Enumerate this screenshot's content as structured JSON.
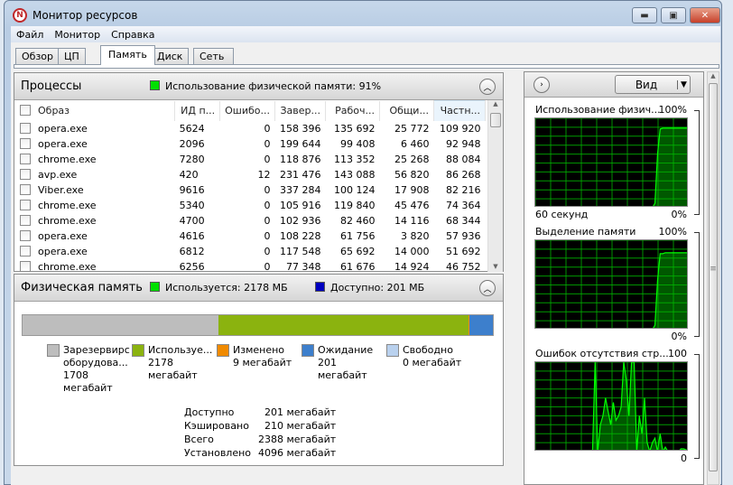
{
  "window": {
    "title": "Монитор ресурсов",
    "icon": "resource-monitor-icon"
  },
  "menu": [
    "Файл",
    "Монитор",
    "Справка"
  ],
  "tabs": [
    {
      "label": "Обзор"
    },
    {
      "label": "ЦП"
    },
    {
      "label": "Память",
      "active": true
    },
    {
      "label": "Диск"
    },
    {
      "label": "Сеть"
    }
  ],
  "processes": {
    "title": "Процессы",
    "usage_label": "Использование физической памяти: 91%",
    "usage_color": "#00e000",
    "columns": [
      "Образ",
      "ИД п...",
      "Ошибо...",
      "Завер...",
      "Рабоч...",
      "Общи...",
      "Частн..."
    ],
    "sorted_column": "Частн...",
    "rows": [
      [
        "opera.exe",
        "5624",
        "0",
        "158 396",
        "135 692",
        "25 772",
        "109 920"
      ],
      [
        "opera.exe",
        "2096",
        "0",
        "199 644",
        "99 408",
        "6 460",
        "92 948"
      ],
      [
        "chrome.exe",
        "7280",
        "0",
        "118 876",
        "113 352",
        "25 268",
        "88 084"
      ],
      [
        "avp.exe",
        "420",
        "12",
        "231 476",
        "143 088",
        "56 820",
        "86 268"
      ],
      [
        "Viber.exe",
        "9616",
        "0",
        "337 284",
        "100 124",
        "17 908",
        "82 216"
      ],
      [
        "chrome.exe",
        "5340",
        "0",
        "105 916",
        "119 840",
        "45 476",
        "74 364"
      ],
      [
        "chrome.exe",
        "4700",
        "0",
        "102 936",
        "82 460",
        "14 116",
        "68 344"
      ],
      [
        "opera.exe",
        "4616",
        "0",
        "108 228",
        "61 756",
        "3 820",
        "57 936"
      ],
      [
        "opera.exe",
        "6812",
        "0",
        "117 548",
        "65 692",
        "14 000",
        "51 692"
      ],
      [
        "chrome.exe",
        "6256",
        "0",
        "77 348",
        "61 676",
        "14 924",
        "46 752"
      ]
    ]
  },
  "physical": {
    "title": "Физическая память",
    "used_label": "Используется: 2178 МБ",
    "available_label": "Доступно: 201 МБ",
    "used_color": "#00e000",
    "available_color": "#0000c0",
    "bar": [
      {
        "mb": 1708,
        "color": "#bdbdbd"
      },
      {
        "mb": 2178,
        "color": "#8bb30f"
      },
      {
        "mb": 9,
        "color": "#f08a00"
      },
      {
        "mb": 201,
        "color": "#3d7fcc"
      },
      {
        "mb": 0,
        "color": "#b9d1ee"
      }
    ],
    "legend": [
      {
        "name": "Зарезервирс оборудова...",
        "value": "1708 мегабайт",
        "color": "#bdbdbd"
      },
      {
        "name": "Используе...",
        "value": "2178 мегабайт",
        "color": "#8bb30f"
      },
      {
        "name": "Изменено",
        "value": "9 мегабайт",
        "color": "#f08a00"
      },
      {
        "name": "Ожидание",
        "value": "201 мегабайт",
        "color": "#3d7fcc"
      },
      {
        "name": "Свободно",
        "value": "0 мегабайт",
        "color": "#b9d1ee"
      }
    ],
    "stats": [
      {
        "label": "Доступно",
        "value": "201 мегабайт"
      },
      {
        "label": "Кэшировано",
        "value": "210 мегабайт"
      },
      {
        "label": "Всего",
        "value": "2388 мегабайт"
      },
      {
        "label": "Установлено",
        "value": "4096 мегабайт"
      }
    ]
  },
  "side": {
    "view_label": "Вид",
    "graphs": [
      {
        "title": "Использование физич...",
        "max": "100%",
        "min": "0%",
        "footer": "60 секунд",
        "values": [
          0,
          0,
          0,
          0,
          0,
          0,
          0,
          0,
          0,
          0,
          0,
          0,
          0,
          0,
          0,
          0,
          0,
          0,
          0,
          0,
          0,
          0,
          0,
          0,
          0,
          0,
          0,
          0,
          0,
          0,
          0,
          0,
          0,
          0,
          0,
          0,
          0,
          0,
          0,
          0,
          0,
          0,
          0,
          0,
          0,
          0,
          5,
          60,
          88,
          89,
          89,
          89,
          89,
          89,
          89,
          89,
          89,
          89,
          89,
          89
        ]
      },
      {
        "title": "Выделение памяти",
        "max": "100%",
        "min": "0%",
        "values": [
          0,
          0,
          0,
          0,
          0,
          0,
          0,
          0,
          0,
          0,
          0,
          0,
          0,
          0,
          0,
          0,
          0,
          0,
          0,
          0,
          0,
          0,
          0,
          0,
          0,
          0,
          0,
          0,
          0,
          0,
          0,
          0,
          0,
          0,
          0,
          0,
          0,
          0,
          0,
          0,
          0,
          0,
          0,
          0,
          0,
          0,
          5,
          55,
          85,
          85,
          86,
          86,
          86,
          86,
          86,
          86,
          86,
          86,
          86,
          86
        ]
      },
      {
        "title": "Ошибок отсутствия стр...",
        "max": "100",
        "min": "0",
        "values": [
          0,
          0,
          0,
          0,
          0,
          0,
          0,
          0,
          0,
          0,
          0,
          0,
          0,
          0,
          0,
          0,
          0,
          0,
          0,
          0,
          0,
          0,
          0,
          100,
          0,
          30,
          40,
          60,
          45,
          30,
          55,
          35,
          40,
          50,
          100,
          80,
          40,
          100,
          100,
          0,
          40,
          20,
          60,
          10,
          0,
          10,
          15,
          0,
          20,
          0,
          5,
          0,
          0,
          0,
          0,
          0,
          3,
          3,
          2,
          0
        ]
      }
    ],
    "graph_color": "#00ff00"
  }
}
